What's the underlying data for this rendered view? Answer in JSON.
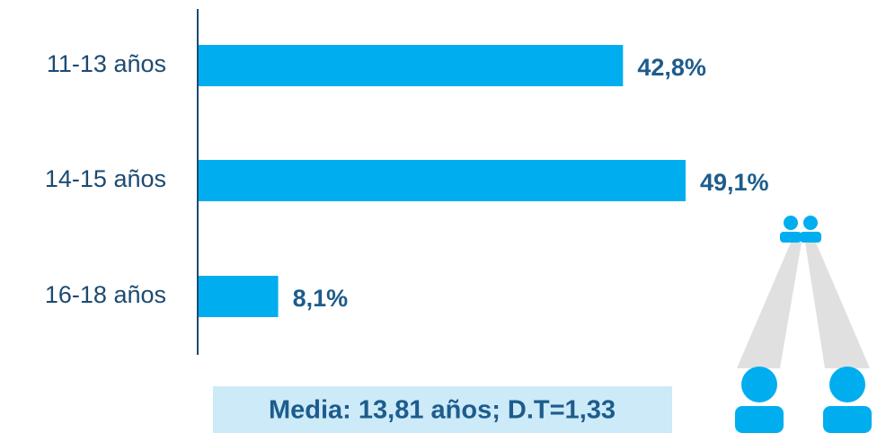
{
  "chart_data": {
    "type": "bar",
    "orientation": "horizontal",
    "categories": [
      "11-13 años",
      "14-15 años",
      "16-18 años"
    ],
    "values": [
      42.8,
      49.1,
      8.1
    ],
    "value_labels": [
      "42,8%",
      "49,1%",
      "8,1%"
    ],
    "color": "#00aeef",
    "annotation": "Media: 13,81 años; D.T=1,33"
  }
}
